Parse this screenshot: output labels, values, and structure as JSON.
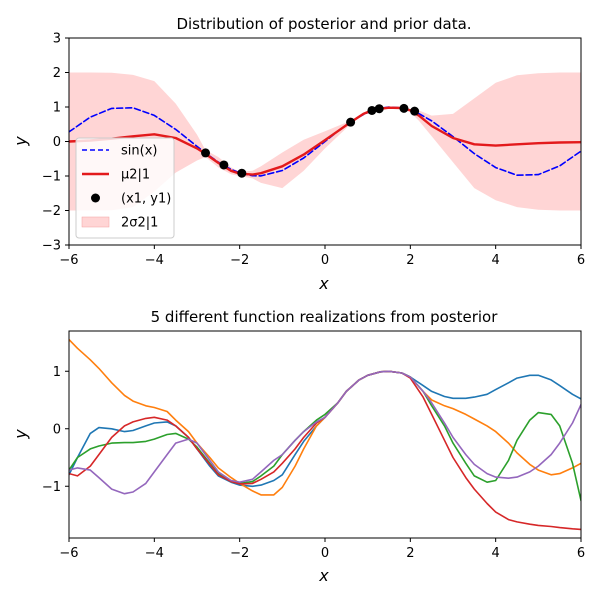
{
  "chart_data": [
    {
      "type": "line",
      "title": "Distribution of posterior and prior data.",
      "xlabel": "x",
      "ylabel": "y",
      "xlim": [
        -6,
        6
      ],
      "ylim": [
        -3,
        3
      ],
      "xticks": [
        "−6",
        "−4",
        "−2",
        "0",
        "2",
        "4",
        "6"
      ],
      "yticks": [
        "−3",
        "−2",
        "−1",
        "0",
        "1",
        "2",
        "3"
      ],
      "legend_position": "lower-left",
      "legend": [
        {
          "label": "sin(x)",
          "style": "dashed-line",
          "color": "#0000ff"
        },
        {
          "label": "μ2|1",
          "style": "line",
          "color": "#e31a1c"
        },
        {
          "label": "(x1, y1)",
          "style": "marker",
          "color": "#000000"
        },
        {
          "label": "2σ2|1",
          "style": "patch",
          "color": "#ffb3b3"
        }
      ],
      "x": [
        -6.0,
        -5.5,
        -5.0,
        -4.5,
        -4.0,
        -3.5,
        -3.0,
        -2.8,
        -2.5,
        -2.2,
        -2.0,
        -1.7,
        -1.5,
        -1.0,
        -0.5,
        0.0,
        0.3,
        0.6,
        0.9,
        1.1,
        1.3,
        1.5,
        1.8,
        2.0,
        2.2,
        2.5,
        3.0,
        3.5,
        4.0,
        4.5,
        5.0,
        5.5,
        6.0
      ],
      "series": [
        {
          "name": "sin(x)",
          "color": "#0000ff",
          "dash": true,
          "values": [
            0.279,
            0.706,
            0.959,
            0.978,
            0.757,
            0.351,
            -0.141,
            -0.335,
            -0.598,
            -0.808,
            -0.909,
            -0.992,
            -0.997,
            -0.841,
            -0.479,
            0.0,
            0.296,
            0.565,
            0.783,
            0.891,
            0.964,
            0.997,
            0.974,
            0.909,
            0.808,
            0.598,
            0.141,
            -0.351,
            -0.757,
            -0.978,
            -0.959,
            -0.706,
            -0.279
          ]
        },
        {
          "name": "μ2|1",
          "color": "#e31a1c",
          "dash": false,
          "values": [
            0.0,
            0.03,
            0.08,
            0.15,
            0.21,
            0.1,
            -0.2,
            -0.36,
            -0.62,
            -0.85,
            -0.93,
            -0.96,
            -0.92,
            -0.72,
            -0.38,
            0.04,
            0.3,
            0.56,
            0.8,
            0.9,
            0.95,
            0.98,
            0.97,
            0.9,
            0.75,
            0.45,
            0.1,
            -0.08,
            -0.12,
            -0.08,
            -0.05,
            -0.03,
            -0.02
          ]
        }
      ],
      "band": {
        "name": "2σ2|1",
        "upper": [
          2.0,
          2.0,
          1.99,
          1.93,
          1.75,
          1.1,
          0.2,
          -0.25,
          -0.45,
          -0.75,
          -0.88,
          -0.85,
          -0.72,
          -0.32,
          0.05,
          0.3,
          0.45,
          0.6,
          0.82,
          0.92,
          0.97,
          1.0,
          0.99,
          0.95,
          0.9,
          0.75,
          0.8,
          1.25,
          1.7,
          1.92,
          1.98,
          2.0,
          2.0
        ],
        "lower": [
          -2.0,
          -2.0,
          -1.99,
          -1.9,
          -1.45,
          -0.9,
          -0.55,
          -0.45,
          -0.75,
          -0.95,
          -1.0,
          -1.07,
          -1.2,
          -1.35,
          -0.85,
          -0.2,
          0.15,
          0.5,
          0.78,
          0.88,
          0.93,
          0.96,
          0.95,
          0.85,
          0.6,
          0.15,
          -0.6,
          -1.35,
          -1.7,
          -1.9,
          -1.98,
          -2.0,
          -2.0
        ]
      },
      "points": [
        {
          "x": -2.8,
          "y": -0.33
        },
        {
          "x": -2.37,
          "y": -0.68
        },
        {
          "x": -1.95,
          "y": -0.92
        },
        {
          "x": 0.6,
          "y": 0.56
        },
        {
          "x": 1.1,
          "y": 0.9
        },
        {
          "x": 1.27,
          "y": 0.95
        },
        {
          "x": 1.85,
          "y": 0.96
        },
        {
          "x": 2.1,
          "y": 0.88
        }
      ]
    },
    {
      "type": "line",
      "title": "5 different function realizations from posterior",
      "xlabel": "x",
      "ylabel": "y",
      "xlim": [
        -6,
        6
      ],
      "ylim": [
        -1.9,
        1.7
      ],
      "xticks": [
        "−6",
        "−4",
        "−2",
        "0",
        "2",
        "4",
        "6"
      ],
      "yticks": [
        "−1",
        "0",
        "1"
      ],
      "x": [
        -6.0,
        -5.8,
        -5.5,
        -5.3,
        -5.0,
        -4.7,
        -4.5,
        -4.2,
        -4.0,
        -3.7,
        -3.5,
        -3.2,
        -3.0,
        -2.7,
        -2.5,
        -2.2,
        -2.0,
        -1.7,
        -1.5,
        -1.2,
        -1.0,
        -0.7,
        -0.5,
        -0.2,
        0.0,
        0.3,
        0.5,
        0.8,
        1.0,
        1.3,
        1.5,
        1.8,
        2.0,
        2.3,
        2.5,
        2.8,
        3.0,
        3.3,
        3.5,
        3.8,
        4.0,
        4.3,
        4.5,
        4.8,
        5.0,
        5.3,
        5.5,
        5.8,
        6.0
      ],
      "series": [
        {
          "color": "#1f77b4",
          "values": [
            -0.8,
            -0.5,
            -0.08,
            0.02,
            0.0,
            -0.05,
            -0.03,
            0.05,
            0.1,
            0.12,
            0.05,
            -0.15,
            -0.35,
            -0.65,
            -0.82,
            -0.93,
            -0.98,
            -1.0,
            -0.98,
            -0.9,
            -0.8,
            -0.45,
            -0.22,
            0.05,
            0.2,
            0.45,
            0.65,
            0.85,
            0.93,
            0.99,
            1.0,
            0.97,
            0.9,
            0.75,
            0.65,
            0.56,
            0.53,
            0.53,
            0.55,
            0.6,
            0.68,
            0.8,
            0.88,
            0.93,
            0.93,
            0.85,
            0.75,
            0.6,
            0.52
          ]
        },
        {
          "color": "#ff7f0e",
          "values": [
            1.55,
            1.4,
            1.2,
            1.05,
            0.8,
            0.58,
            0.48,
            0.4,
            0.37,
            0.3,
            0.15,
            -0.05,
            -0.25,
            -0.5,
            -0.68,
            -0.85,
            -0.95,
            -1.08,
            -1.15,
            -1.15,
            -1.02,
            -0.65,
            -0.35,
            0.05,
            0.2,
            0.45,
            0.65,
            0.85,
            0.93,
            0.99,
            1.0,
            0.97,
            0.9,
            0.65,
            0.5,
            0.4,
            0.35,
            0.25,
            0.17,
            0.05,
            -0.05,
            -0.25,
            -0.42,
            -0.62,
            -0.72,
            -0.8,
            -0.78,
            -0.68,
            -0.6
          ]
        },
        {
          "color": "#2ca02c",
          "values": [
            -0.72,
            -0.5,
            -0.35,
            -0.3,
            -0.25,
            -0.24,
            -0.24,
            -0.22,
            -0.18,
            -0.1,
            -0.08,
            -0.18,
            -0.32,
            -0.6,
            -0.78,
            -0.92,
            -0.95,
            -0.92,
            -0.82,
            -0.65,
            -0.45,
            -0.2,
            -0.05,
            0.15,
            0.25,
            0.45,
            0.65,
            0.85,
            0.93,
            0.99,
            1.0,
            0.97,
            0.9,
            0.65,
            0.4,
            0.05,
            -0.25,
            -0.6,
            -0.82,
            -0.93,
            -0.9,
            -0.55,
            -0.2,
            0.15,
            0.28,
            0.25,
            0.05,
            -0.6,
            -1.25
          ]
        },
        {
          "color": "#d62728",
          "values": [
            -0.78,
            -0.82,
            -0.65,
            -0.45,
            -0.15,
            0.05,
            0.12,
            0.18,
            0.2,
            0.15,
            0.05,
            -0.15,
            -0.35,
            -0.62,
            -0.8,
            -0.92,
            -0.96,
            -0.95,
            -0.88,
            -0.75,
            -0.6,
            -0.35,
            -0.15,
            0.1,
            0.2,
            0.45,
            0.65,
            0.85,
            0.93,
            0.99,
            1.0,
            0.97,
            0.88,
            0.55,
            0.25,
            -0.2,
            -0.5,
            -0.85,
            -1.05,
            -1.3,
            -1.45,
            -1.58,
            -1.62,
            -1.66,
            -1.68,
            -1.7,
            -1.72,
            -1.74,
            -1.75
          ]
        },
        {
          "color": "#9467bd",
          "values": [
            -0.72,
            -0.68,
            -0.72,
            -0.85,
            -1.05,
            -1.13,
            -1.1,
            -0.95,
            -0.75,
            -0.45,
            -0.25,
            -0.18,
            -0.25,
            -0.55,
            -0.75,
            -0.9,
            -0.93,
            -0.88,
            -0.75,
            -0.55,
            -0.45,
            -0.2,
            -0.05,
            0.12,
            0.2,
            0.45,
            0.65,
            0.85,
            0.93,
            0.99,
            1.0,
            0.97,
            0.9,
            0.65,
            0.45,
            0.1,
            -0.15,
            -0.45,
            -0.62,
            -0.78,
            -0.84,
            -0.86,
            -0.84,
            -0.75,
            -0.65,
            -0.45,
            -0.25,
            0.1,
            0.42
          ]
        }
      ]
    }
  ]
}
